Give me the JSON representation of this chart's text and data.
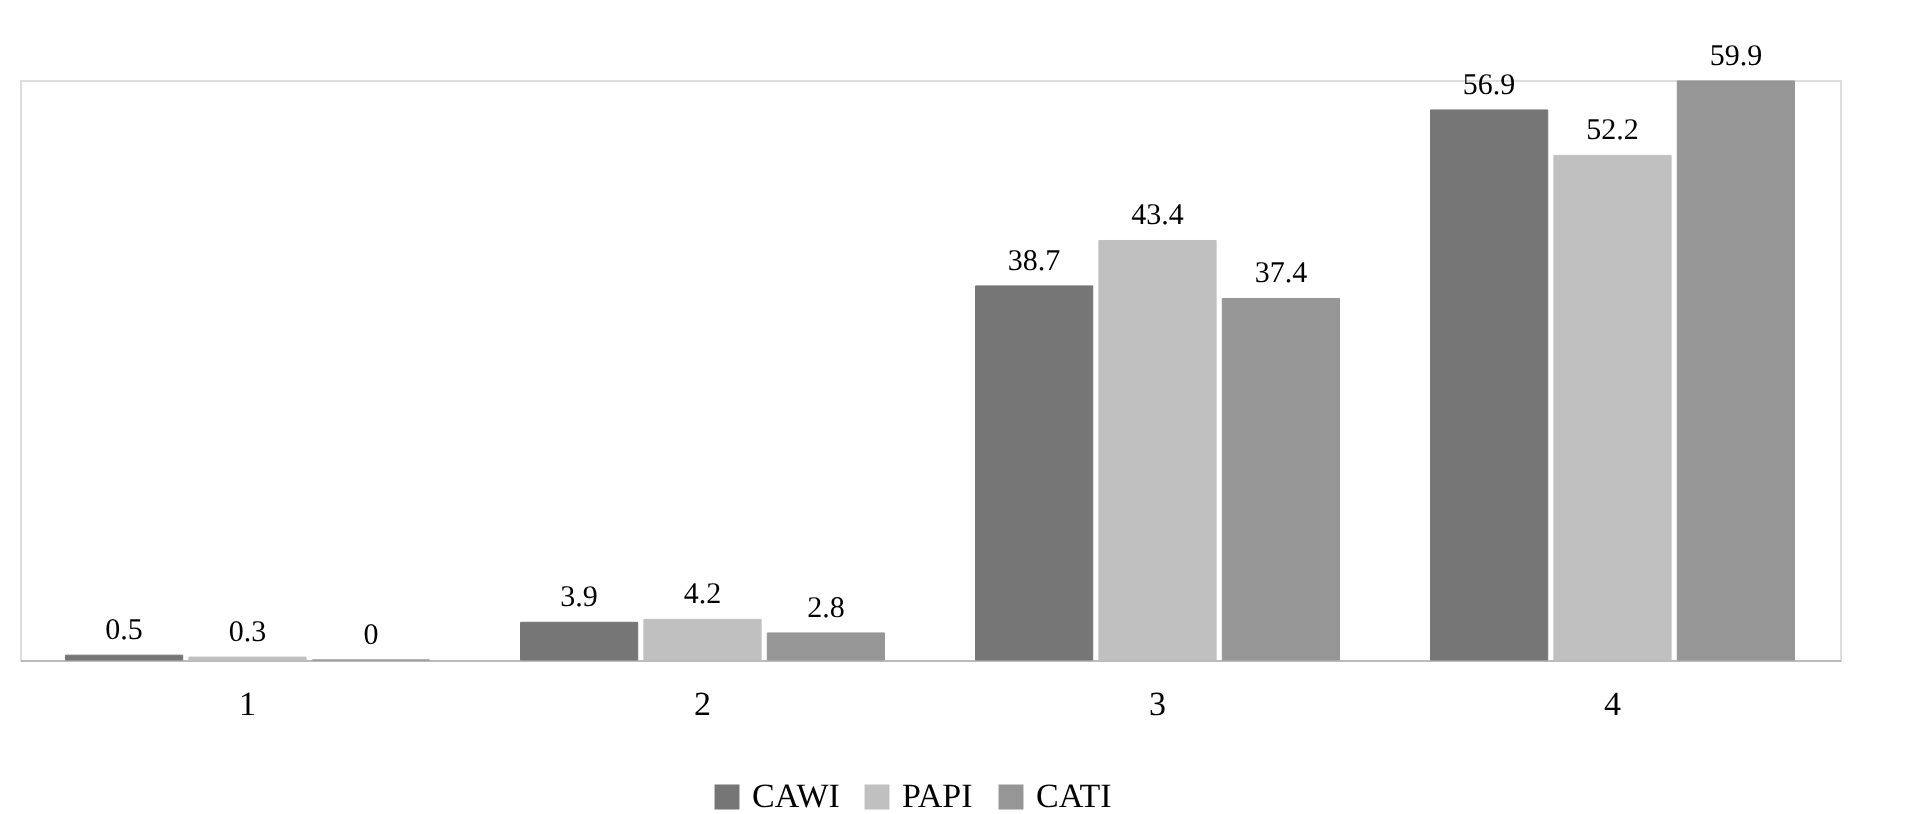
{
  "chart_data": {
    "type": "bar",
    "categories": [
      "1",
      "2",
      "3",
      "4"
    ],
    "series": [
      {
        "name": "CAWI",
        "color": "#767676",
        "values": [
          0.5,
          3.9,
          38.7,
          56.9
        ]
      },
      {
        "name": "PAPI",
        "color": "#c0c0c0",
        "values": [
          0.3,
          4.2,
          43.4,
          52.2
        ]
      },
      {
        "name": "CATI",
        "color": "#969696",
        "values": [
          0,
          2.8,
          37.4,
          59.9
        ]
      }
    ],
    "data_labels": true,
    "legend": "bottom",
    "grid": false,
    "tick_labels": "x"
  }
}
